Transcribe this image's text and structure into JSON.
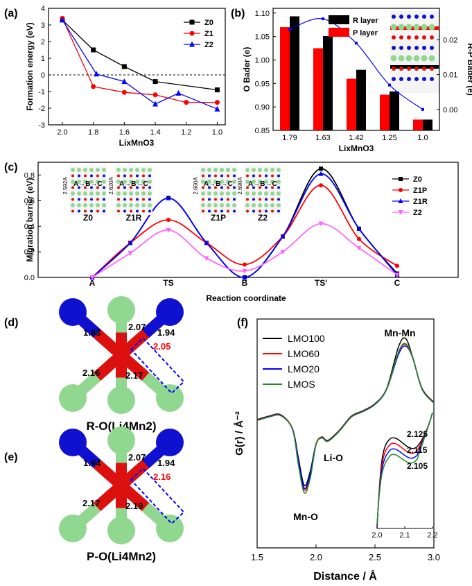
{
  "colors": {
    "black": "#000000",
    "red": "#ff0000",
    "blue": "#0000ff",
    "pink": "#ff66ff",
    "green": "#228b22",
    "mn": "#1010d0",
    "o": "#dd1010",
    "li": "#90d890"
  },
  "chart_data": [
    {
      "panel": "(a)",
      "type": "line",
      "xlabel": "LixMnO3",
      "ylabel": "Formation energy (eV)",
      "xlim": [
        2.0,
        0.95
      ],
      "ylim": [
        -3,
        4
      ],
      "xticks": [
        "2.0",
        "1.8",
        "1.6",
        "1.4",
        "1.2",
        "1.0"
      ],
      "yticks": [
        "-3",
        "-2",
        "-1",
        "0",
        "1",
        "2",
        "3",
        "4"
      ],
      "series": [
        {
          "name": "Z0",
          "color": "#000000",
          "marker": "square",
          "x": [
            2.0,
            1.8,
            1.6,
            1.4,
            1.0
          ],
          "y": [
            3.3,
            1.5,
            0.5,
            -0.4,
            -0.9
          ]
        },
        {
          "name": "Z1",
          "color": "#ff0000",
          "marker": "circle",
          "x": [
            2.0,
            1.8,
            1.6,
            1.4,
            1.2,
            1.0
          ],
          "y": [
            3.4,
            -0.7,
            -1.05,
            -1.2,
            -1.65,
            -1.65
          ]
        },
        {
          "name": "Z2",
          "color": "#0000ff",
          "marker": "triangle",
          "x": [
            2.0,
            1.78,
            1.6,
            1.4,
            1.25,
            1.0
          ],
          "y": [
            3.3,
            0.05,
            -0.4,
            -1.75,
            -1.1,
            -2.05
          ]
        }
      ],
      "reference_line": 0
    },
    {
      "panel": "(b)",
      "type": "bar",
      "xlabel": "LixMnO3",
      "ylabel": "O Bader (e)",
      "y2label": "R-P Bader (e)",
      "categories": [
        "1.79",
        "1.63",
        "1.42",
        "1.25",
        "1.0"
      ],
      "ylim": [
        0.85,
        1.11
      ],
      "yticks": [
        "0.85",
        "0.90",
        "0.95",
        "1.00",
        "1.05",
        "1.10"
      ],
      "y2lim": [
        -0.006,
        0.029
      ],
      "y2ticks": [
        "0.00",
        "0.01",
        "0.02"
      ],
      "series": [
        {
          "name": "R layer",
          "color": "#000000",
          "values": [
            1.093,
            1.051,
            0.979,
            0.933,
            0.873
          ]
        },
        {
          "name": "P layer",
          "color": "#ff0000",
          "values": [
            1.07,
            1.025,
            0.96,
            0.926,
            0.873
          ]
        }
      ],
      "diff_series": {
        "name": "R-P",
        "color": "#0000ff",
        "values": [
          0.023,
          0.026,
          0.019,
          0.007,
          0.0
        ]
      }
    },
    {
      "panel": "(c)",
      "type": "line",
      "xlabel": "Reaction coordinate",
      "ylabel": "Migration barrier (eV)",
      "categories": [
        "A",
        "TS",
        "B",
        "TS'",
        "C"
      ],
      "ylim": [
        0,
        0.9
      ],
      "yticks": [
        "0.0",
        "0.2",
        "0.4",
        "0.6",
        "0.8"
      ],
      "series": [
        {
          "name": "Z0",
          "color": "#000000",
          "marker": "square",
          "values": [
            0.0,
            0.62,
            0.0,
            0.85,
            0.03
          ]
        },
        {
          "name": "Z1P",
          "color": "#ff0000",
          "marker": "circle",
          "values": [
            0.0,
            0.45,
            0.1,
            0.72,
            0.09
          ]
        },
        {
          "name": "Z1R",
          "color": "#0000ff",
          "marker": "triangle",
          "values": [
            0.0,
            0.62,
            0.0,
            0.81,
            0.02
          ]
        },
        {
          "name": "Z2",
          "color": "#ff66ff",
          "marker": "triangle-down",
          "values": [
            0.0,
            0.37,
            0.05,
            0.42,
            0.02
          ]
        }
      ],
      "intermediate": [
        {
          "x": 0.5,
          "values": [
            0.27,
            0.27,
            0.27,
            0.19
          ]
        },
        {
          "x": 1.5,
          "values": [
            0.27,
            0.27,
            0.27,
            0.15
          ]
        },
        {
          "x": 2.5,
          "values": [
            0.32,
            0.32,
            0.32,
            0.2
          ]
        },
        {
          "x": 3.5,
          "values": [
            0.38,
            0.3,
            0.38,
            0.23
          ]
        }
      ],
      "insets": [
        {
          "label": "Z0",
          "dist": "2.592A",
          "path": "A→B→C"
        },
        {
          "label": "Z1R",
          "dist": "2.620A",
          "path": "A→B→C"
        },
        {
          "label": "Z1P",
          "dist": "2.660A",
          "path": "A→B→C"
        },
        {
          "label": "Z2",
          "dist": "2.690A",
          "path": "A→B→C"
        }
      ]
    },
    {
      "panel": "(f)",
      "type": "line",
      "xlabel": "Distance / Å",
      "ylabel": "G(r) / Å⁻²",
      "xlim": [
        1.5,
        3.0
      ],
      "xticks": [
        "1.5",
        "2.0",
        "2.5",
        "3.0"
      ],
      "series": [
        {
          "name": "LMO100",
          "color": "#000000"
        },
        {
          "name": "LMO60",
          "color": "#ff0000"
        },
        {
          "name": "LMO20",
          "color": "#0000ff"
        },
        {
          "name": "LMOS",
          "color": "#228b22"
        }
      ],
      "annotations": [
        "Mn-Mn",
        "Li-O",
        "Mn-O"
      ],
      "inset": {
        "xlim": [
          2.0,
          2.2
        ],
        "xticks": [
          "2.0",
          "2.1",
          "2.2"
        ],
        "labels": [
          "2.125",
          "2.115",
          "2.105"
        ]
      }
    }
  ],
  "structures": [
    {
      "panel": "(d)",
      "title": "R-O(Li4Mn2)",
      "bonds": [
        "1.93",
        "2.07",
        "1.94",
        "2.16",
        "2.17",
        "2.05"
      ]
    },
    {
      "panel": "(e)",
      "title": "P-O(Li4Mn2)",
      "bonds": [
        "1.94",
        "2.07",
        "1.94",
        "2.17",
        "2.19",
        "2.16"
      ]
    }
  ],
  "panel_labels": [
    "(a)",
    "(b)",
    "(c)",
    "(d)",
    "(e)",
    "(f)"
  ]
}
